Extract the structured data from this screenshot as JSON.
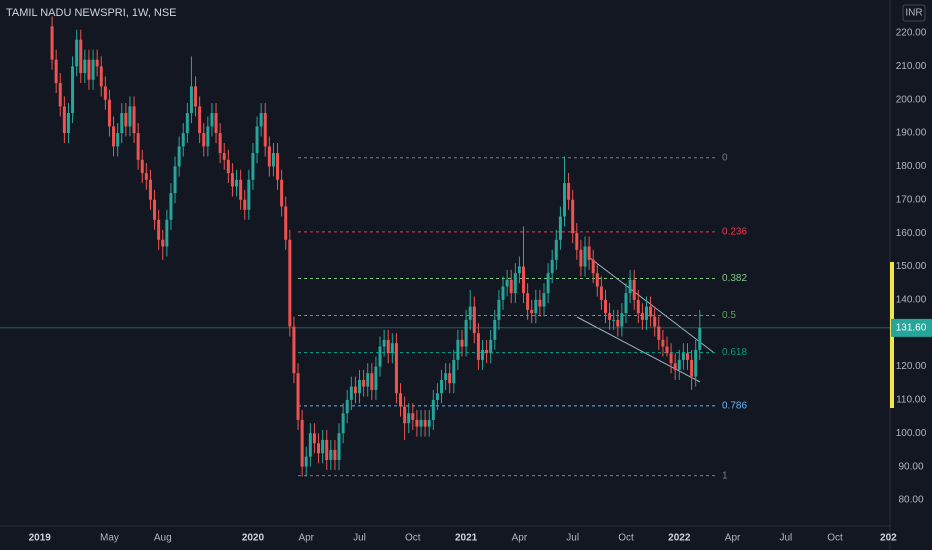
{
  "chart_data": {
    "type": "candlestick",
    "title": "TAMIL NADU NEWSPRI, 1W, NSE",
    "currency": "INR",
    "up_color": "#26a69a",
    "down_color": "#ef5350",
    "open": [
      222,
      212,
      205,
      198,
      190,
      196,
      210,
      218,
      208,
      212,
      206,
      212,
      210,
      204,
      200,
      192,
      186,
      190,
      196,
      192,
      198,
      190,
      182,
      178,
      176,
      170,
      164,
      158,
      156,
      164,
      172,
      180,
      186,
      190,
      196,
      204,
      198,
      190,
      186,
      192,
      196,
      190,
      184,
      182,
      178,
      174,
      176,
      170,
      167,
      176,
      184,
      192,
      196,
      186,
      180,
      184,
      176,
      168,
      158,
      132,
      118,
      104,
      90,
      93,
      100,
      97,
      94,
      98,
      92,
      95,
      92,
      100,
      106,
      110,
      114,
      112,
      116,
      114,
      118,
      113,
      120,
      126,
      128,
      124,
      127,
      112,
      108,
      103,
      106,
      104,
      102,
      104,
      102,
      104,
      110,
      112,
      116,
      118,
      115,
      122,
      128,
      126,
      134,
      138,
      130,
      122,
      125,
      124,
      128,
      134,
      140,
      144,
      146,
      142,
      148,
      150,
      142,
      137,
      136,
      140,
      138,
      142,
      148,
      152,
      158,
      165,
      175,
      170,
      160,
      155,
      150,
      156,
      152,
      148,
      144,
      140,
      136,
      134,
      134,
      132,
      136,
      142,
      146,
      140,
      136,
      134,
      138,
      135,
      132,
      128,
      126,
      124,
      121,
      119,
      122,
      124,
      122,
      117,
      125
    ],
    "high": [
      225,
      215,
      208,
      201,
      199,
      213,
      221,
      221,
      215,
      215,
      215,
      215,
      213,
      207,
      203,
      195,
      193,
      199,
      199,
      201,
      201,
      193,
      185,
      181,
      179,
      173,
      167,
      161,
      167,
      175,
      183,
      189,
      193,
      199,
      213,
      207,
      201,
      193,
      195,
      199,
      199,
      193,
      187,
      185,
      181,
      179,
      179,
      173,
      179,
      187,
      195,
      199,
      199,
      189,
      187,
      187,
      179,
      171,
      161,
      135,
      121,
      107,
      96,
      103,
      103,
      100,
      101,
      101,
      98,
      98,
      103,
      109,
      113,
      117,
      117,
      119,
      119,
      121,
      121,
      123,
      129,
      131,
      131,
      130,
      130,
      115,
      111,
      109,
      109,
      107,
      107,
      107,
      107,
      113,
      115,
      119,
      121,
      121,
      125,
      131,
      131,
      137,
      143,
      141,
      133,
      128,
      128,
      131,
      137,
      143,
      147,
      149,
      149,
      151,
      153,
      162,
      145,
      140,
      143,
      143,
      145,
      151,
      155,
      161,
      168,
      183,
      178,
      173,
      163,
      158,
      159,
      159,
      155,
      151,
      147,
      143,
      139,
      137,
      137,
      139,
      145,
      149,
      149,
      143,
      139,
      141,
      141,
      138,
      135,
      131,
      129,
      127,
      124,
      125,
      127,
      127,
      125,
      128,
      137
    ],
    "low": [
      209,
      202,
      195,
      187,
      187,
      193,
      207,
      205,
      205,
      203,
      203,
      207,
      201,
      197,
      189,
      183,
      183,
      187,
      189,
      189,
      187,
      179,
      175,
      173,
      167,
      161,
      155,
      152,
      153,
      161,
      169,
      177,
      183,
      187,
      193,
      195,
      187,
      183,
      183,
      189,
      187,
      181,
      179,
      175,
      171,
      171,
      167,
      164,
      164,
      173,
      181,
      189,
      183,
      177,
      177,
      173,
      165,
      155,
      129,
      115,
      101,
      87,
      87,
      90,
      94,
      91,
      91,
      89,
      89,
      89,
      89,
      97,
      103,
      107,
      109,
      109,
      111,
      111,
      110,
      110,
      117,
      123,
      121,
      121,
      109,
      105,
      98,
      100,
      101,
      99,
      99,
      99,
      99,
      101,
      107,
      109,
      113,
      112,
      112,
      119,
      123,
      123,
      131,
      127,
      119,
      119,
      121,
      121,
      125,
      131,
      137,
      141,
      139,
      139,
      145,
      139,
      134,
      133,
      133,
      135,
      135,
      139,
      145,
      149,
      155,
      162,
      167,
      157,
      152,
      147,
      147,
      149,
      145,
      141,
      137,
      133,
      131,
      131,
      129,
      129,
      133,
      139,
      137,
      133,
      131,
      131,
      132,
      129,
      125,
      123,
      123,
      118,
      116,
      116,
      119,
      119,
      113,
      114,
      122
    ],
    "close": [
      212,
      205,
      198,
      190,
      196,
      210,
      218,
      208,
      212,
      206,
      212,
      210,
      204,
      200,
      192,
      186,
      190,
      196,
      192,
      198,
      190,
      182,
      178,
      176,
      170,
      164,
      158,
      156,
      164,
      172,
      180,
      186,
      190,
      196,
      204,
      198,
      190,
      186,
      192,
      196,
      190,
      184,
      182,
      178,
      174,
      176,
      170,
      167,
      176,
      184,
      192,
      196,
      186,
      180,
      184,
      176,
      168,
      158,
      132,
      118,
      104,
      90,
      93,
      100,
      97,
      94,
      98,
      92,
      95,
      92,
      100,
      106,
      110,
      114,
      112,
      116,
      114,
      118,
      113,
      120,
      126,
      128,
      124,
      127,
      112,
      108,
      103,
      106,
      104,
      102,
      104,
      102,
      104,
      110,
      112,
      116,
      118,
      115,
      122,
      128,
      126,
      134,
      138,
      130,
      122,
      125,
      124,
      128,
      134,
      140,
      144,
      146,
      142,
      148,
      150,
      142,
      137,
      136,
      140,
      138,
      142,
      148,
      152,
      158,
      165,
      175,
      170,
      160,
      155,
      150,
      156,
      152,
      148,
      144,
      140,
      136,
      134,
      134,
      132,
      136,
      142,
      146,
      140,
      136,
      134,
      138,
      135,
      132,
      128,
      126,
      124,
      121,
      119,
      122,
      124,
      122,
      117,
      125,
      131.6
    ],
    "last_price": {
      "value": 131.6,
      "label": "131.60"
    },
    "xlim": [
      -12.7,
      204.4
    ],
    "xticks": [
      {
        "value": -3,
        "label": "2019"
      },
      {
        "value": 14,
        "label": "May"
      },
      {
        "value": 27,
        "label": "Aug"
      },
      {
        "value": 49,
        "label": "2020"
      },
      {
        "value": 62,
        "label": "Apr"
      },
      {
        "value": 75,
        "label": "Jul"
      },
      {
        "value": 88,
        "label": "Oct"
      },
      {
        "value": 101,
        "label": "2021"
      },
      {
        "value": 114,
        "label": "Apr"
      },
      {
        "value": 127,
        "label": "Jul"
      },
      {
        "value": 140,
        "label": "Oct"
      },
      {
        "value": 153,
        "label": "2022"
      },
      {
        "value": 166,
        "label": "Apr"
      },
      {
        "value": 179,
        "label": "Jul"
      },
      {
        "value": 191,
        "label": "Oct"
      },
      {
        "value": 204,
        "label": "202"
      }
    ],
    "ylim": [
      72.5,
      229.9
    ],
    "yticks": [
      {
        "value": 80,
        "label": "80.00"
      },
      {
        "value": 90,
        "label": "90.00"
      },
      {
        "value": 100,
        "label": "100.00"
      },
      {
        "value": 110,
        "label": "110.00"
      },
      {
        "value": 120,
        "label": "120.00"
      },
      {
        "value": 130,
        "label": "130.00"
      },
      {
        "value": 140,
        "label": "140.00"
      },
      {
        "value": 150,
        "label": "150.00"
      },
      {
        "value": 160,
        "label": "160.00"
      },
      {
        "value": 170,
        "label": "170.00"
      },
      {
        "value": 180,
        "label": "180.00"
      },
      {
        "value": 190,
        "label": "190.00"
      },
      {
        "value": 200,
        "label": "200.00"
      },
      {
        "value": 210,
        "label": "210.00"
      },
      {
        "value": 220,
        "label": "220.00"
      }
    ],
    "fib_levels": [
      {
        "label": "0",
        "price": 182.6,
        "color": "#787b86"
      },
      {
        "label": "0.236",
        "price": 160.4,
        "color": "#f23645"
      },
      {
        "label": "0.382",
        "price": 146.4,
        "color": "#81c784"
      },
      {
        "label": "0.5",
        "price": 135.3,
        "color": "#4caf50"
      },
      {
        "label": "0.618",
        "price": 124.2,
        "color": "#089981"
      },
      {
        "label": "0.786",
        "price": 108.2,
        "color": "#64b5f6"
      },
      {
        "label": "1",
        "price": 87.3,
        "color": "#787b86"
      }
    ]
  }
}
